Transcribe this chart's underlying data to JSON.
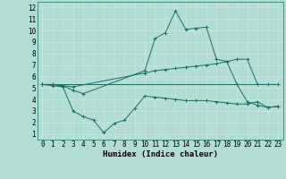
{
  "xlabel": "Humidex (Indice chaleur)",
  "background_color": "#b2ddd4",
  "grid_color": "#d0ece8",
  "line_color": "#1a6e64",
  "xlim": [
    -0.5,
    23.5
  ],
  "ylim": [
    0.5,
    12.5
  ],
  "xticks": [
    0,
    1,
    2,
    3,
    4,
    5,
    6,
    7,
    8,
    9,
    10,
    11,
    12,
    13,
    14,
    15,
    16,
    17,
    18,
    19,
    20,
    21,
    22,
    23
  ],
  "yticks": [
    1,
    2,
    3,
    4,
    5,
    6,
    7,
    8,
    9,
    10,
    11,
    12
  ],
  "line1_x": [
    0,
    1,
    2,
    3,
    4,
    10,
    11,
    12,
    13,
    14,
    15,
    16,
    17,
    18,
    19,
    20,
    21,
    22,
    23
  ],
  "line1_y": [
    5.3,
    5.3,
    5.2,
    4.8,
    4.5,
    6.5,
    9.3,
    9.8,
    11.7,
    10.1,
    10.2,
    10.3,
    7.5,
    7.3,
    5.3,
    3.8,
    3.5,
    3.3,
    3.4
  ],
  "line2_x": [
    0,
    1,
    2,
    3,
    10,
    11,
    12,
    13,
    14,
    15,
    16,
    17,
    18,
    19,
    20,
    21,
    22,
    23
  ],
  "line2_y": [
    5.3,
    5.3,
    5.2,
    5.1,
    6.3,
    6.5,
    6.6,
    6.7,
    6.8,
    6.9,
    7.0,
    7.1,
    7.3,
    7.5,
    7.5,
    5.3,
    5.3,
    5.3
  ],
  "line3_x": [
    0,
    23
  ],
  "line3_y": [
    5.3,
    5.3
  ],
  "line4_x": [
    0,
    1,
    2,
    3,
    4,
    5,
    6,
    7,
    8,
    9,
    10,
    11,
    12,
    13,
    14,
    15,
    16,
    17,
    18,
    19,
    20,
    21,
    22,
    23
  ],
  "line4_y": [
    5.3,
    5.2,
    5.1,
    3.0,
    2.5,
    2.2,
    1.1,
    1.9,
    2.2,
    3.2,
    4.3,
    4.2,
    4.1,
    4.0,
    3.9,
    3.9,
    3.9,
    3.8,
    3.7,
    3.6,
    3.6,
    3.8,
    3.3,
    3.4
  ],
  "tick_fontsize": 5.5,
  "xlabel_fontsize": 6.5,
  "figwidth": 3.2,
  "figheight": 2.0,
  "dpi": 100
}
